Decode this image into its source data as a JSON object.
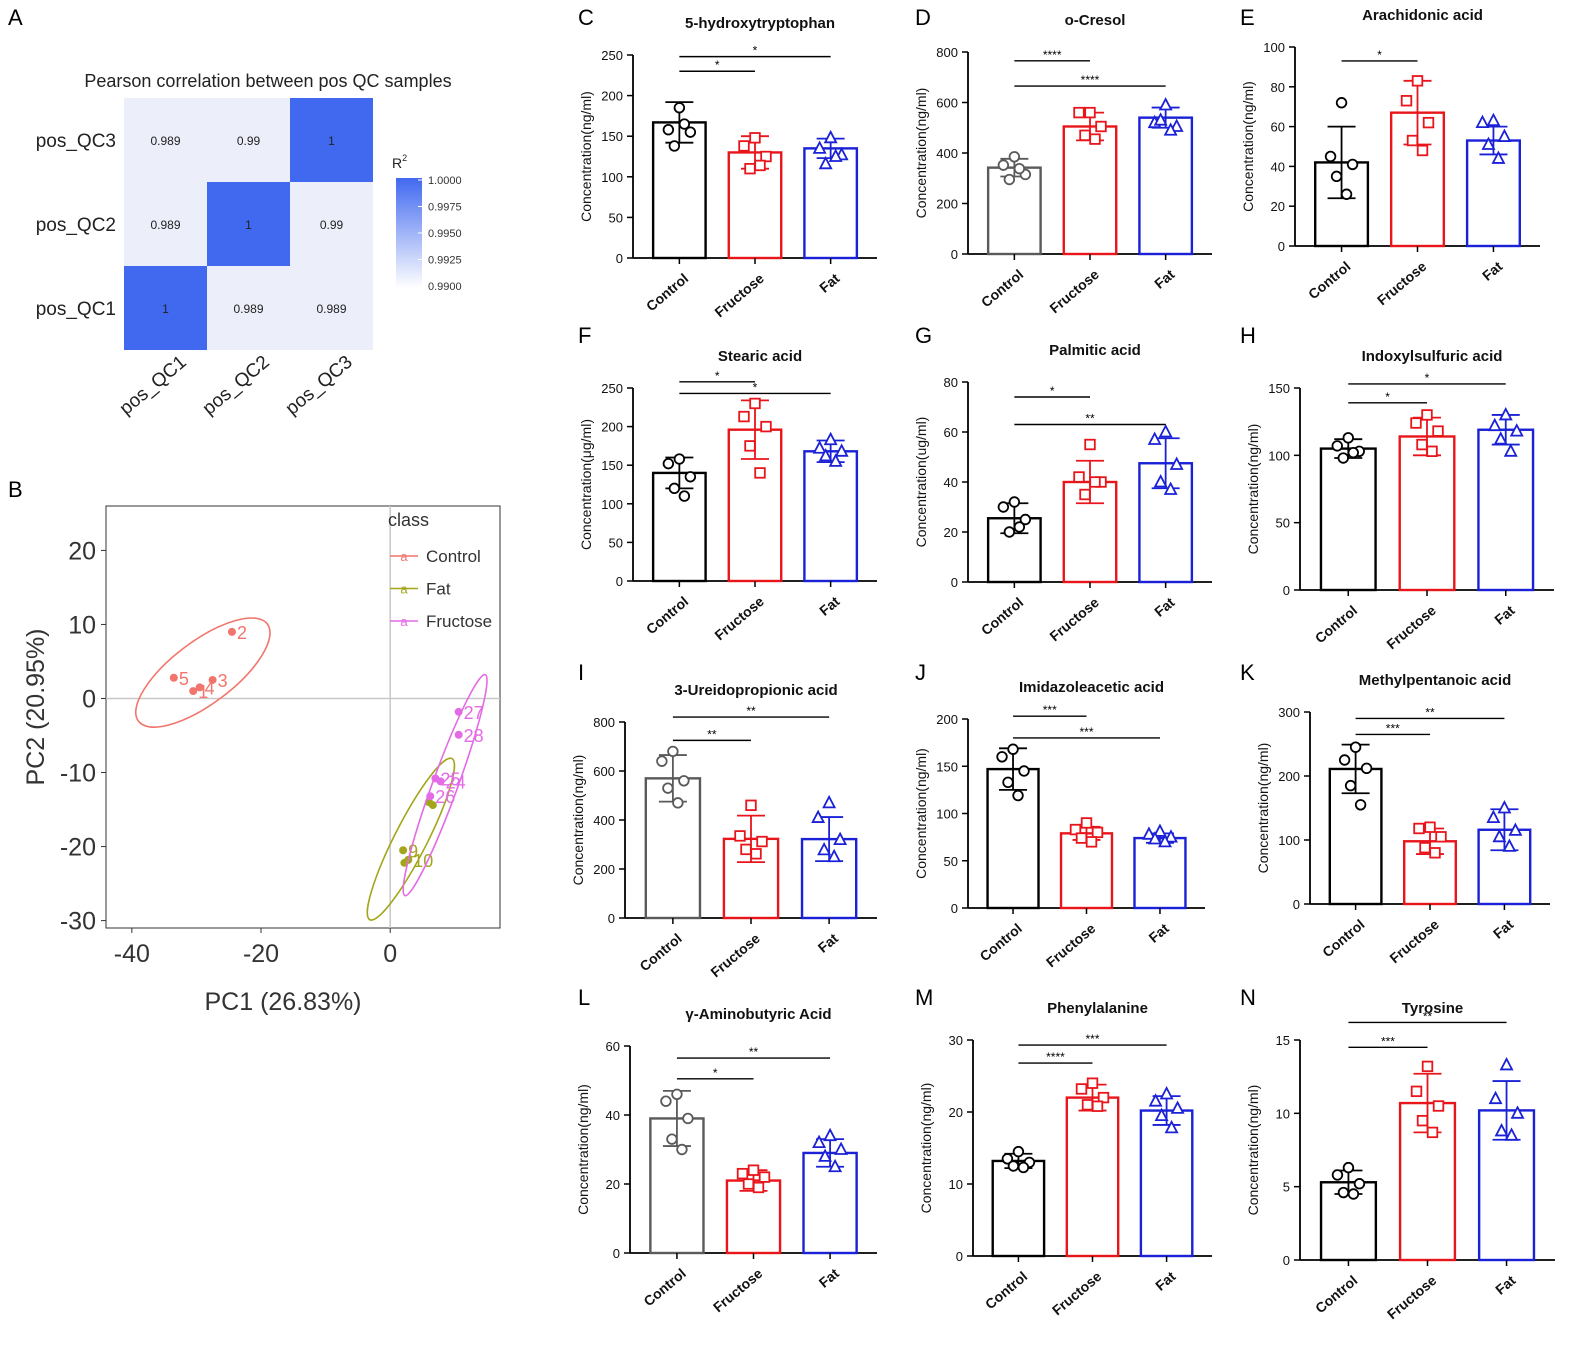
{
  "colors": {
    "control": "#000000",
    "control_alt": "#5a5a5a",
    "fructose": "#e8151b",
    "fat": "#1a21d6",
    "heat_high": "#4169f0",
    "heat_low": "#eceef9",
    "pca_control": "#f1756c",
    "pca_fat": "#a3a61a",
    "pca_fructose": "#e46be6"
  },
  "chart_data": [
    {
      "id": "A",
      "type": "heatmap",
      "panel_label": "A",
      "title": "Pearson correlation between pos QC samples",
      "rows": [
        "pos_QC3",
        "pos_QC2",
        "pos_QC1"
      ],
      "cols": [
        "pos_QC1",
        "pos_QC2",
        "pos_QC3"
      ],
      "values": [
        [
          0.989,
          0.99,
          1
        ],
        [
          0.989,
          1,
          0.99
        ],
        [
          1,
          0.989,
          0.989
        ]
      ],
      "cell_labels": [
        [
          "0.989",
          "0.99",
          "1"
        ],
        [
          "0.989",
          "1",
          "0.99"
        ],
        [
          "1",
          "0.989",
          "0.989"
        ]
      ],
      "legend_title": "R",
      "legend_title_sup": "2",
      "legend_ticks": [
        "1.0000",
        "0.9975",
        "0.9950",
        "0.9925",
        "0.9900"
      ],
      "range": [
        0.99,
        1.0
      ]
    },
    {
      "id": "B",
      "type": "scatter",
      "panel_label": "B",
      "xlabel": "PC1 (26.83%)",
      "ylabel": "PC2 (20.95%)",
      "xlim": [
        -44,
        17
      ],
      "ylim": [
        -31,
        26
      ],
      "xticks": [
        {
          "v": -40,
          "label": "-40"
        },
        {
          "v": -20,
          "label": "-20"
        },
        {
          "v": 0,
          "label": "0"
        }
      ],
      "yticks": [
        {
          "v": 20,
          "label": "20"
        },
        {
          "v": 10,
          "label": "10"
        },
        {
          "v": 0,
          "label": "0"
        },
        {
          "v": -10,
          "label": "-10"
        },
        {
          "v": -20,
          "label": "-20"
        },
        {
          "v": -30,
          "label": "-30"
        }
      ],
      "legend_title": "class",
      "legend_icon_letter": "a",
      "series": [
        {
          "name": "Control",
          "key": "pca_control",
          "points": [
            {
              "x": -24.5,
              "y": 9,
              "label": "2"
            },
            {
              "x": -33.5,
              "y": 2.8,
              "label": "5"
            },
            {
              "x": -27.5,
              "y": 2.5,
              "label": "3"
            },
            {
              "x": -29.5,
              "y": 1.5,
              "label": "4"
            },
            {
              "x": -30.5,
              "y": 1,
              "label": "1"
            }
          ],
          "ellipse": {
            "cx": -29,
            "cy": 3.5,
            "rx": 12.5,
            "ry": 4.2,
            "angle": -37
          }
        },
        {
          "name": "Fat",
          "key": "pca_fat",
          "points": [
            {
              "x": 2,
              "y": -20.5,
              "label": "9"
            },
            {
              "x": 2.8,
              "y": -21.8,
              "label": "10"
            },
            {
              "x": 2.2,
              "y": -22.2,
              "label": ""
            },
            {
              "x": 6,
              "y": -14,
              "label": ""
            },
            {
              "x": 6.6,
              "y": -14.4,
              "label": ""
            }
          ],
          "ellipse": {
            "cx": 3.2,
            "cy": -19,
            "rx": 14,
            "ry": 2.2,
            "angle": -63
          }
        },
        {
          "name": "Fructose",
          "key": "pca_fructose",
          "points": [
            {
              "x": 10.6,
              "y": -1.8,
              "label": "27"
            },
            {
              "x": 10.6,
              "y": -4.9,
              "label": "28"
            },
            {
              "x": 7,
              "y": -10.8,
              "label": "25"
            },
            {
              "x": 7.8,
              "y": -11.2,
              "label": "24"
            },
            {
              "x": 6.2,
              "y": -13.2,
              "label": "26"
            }
          ],
          "ellipse": {
            "cx": 8.5,
            "cy": -11.7,
            "rx": 18.2,
            "ry": 1.7,
            "angle": -70
          }
        }
      ]
    },
    {
      "id": "C",
      "type": "bar",
      "panel_label": "C",
      "title": "5-hydroxytryptophan",
      "ylabel": "Concentration(ng/ml)",
      "ylim": [
        0,
        250
      ],
      "yticks": [
        0,
        50,
        100,
        150,
        200,
        250
      ],
      "categories": [
        "Control",
        "Fructose",
        "Fat"
      ],
      "means": [
        167,
        130,
        135
      ],
      "sd": [
        25,
        20,
        12
      ],
      "points": [
        [
          185,
          158,
          155,
          138,
          165
        ],
        [
          148,
          138,
          125,
          110,
          114
        ],
        [
          148,
          135,
          127,
          116,
          125
        ]
      ],
      "sig": [
        {
          "a": 1,
          "b": 2,
          "y": 230,
          "label": "*"
        },
        {
          "a": 1,
          "b": 3,
          "y": 248,
          "label": "*"
        }
      ]
    },
    {
      "id": "D",
      "type": "bar",
      "panel_label": "D",
      "title": "o-Cresol",
      "ylabel": "Concentration(ng/ml)",
      "ylim": [
        0,
        800
      ],
      "yticks": [
        0,
        200,
        400,
        600,
        800
      ],
      "categories": [
        "Control",
        "Fructose",
        "Fat"
      ],
      "means": [
        342,
        505,
        540
      ],
      "sd": [
        35,
        55,
        40
      ],
      "points": [
        [
          385,
          352,
          315,
          295,
          338
        ],
        [
          560,
          560,
          505,
          470,
          455
        ],
        [
          590,
          520,
          505,
          530,
          490
        ]
      ],
      "sig": [
        {
          "a": 1,
          "b": 2,
          "y": 765,
          "label": "****"
        },
        {
          "a": 1,
          "b": 3,
          "y": 665,
          "label": "****"
        }
      ]
    },
    {
      "id": "E",
      "type": "bar",
      "panel_label": "E",
      "title": "Arachidonic acid",
      "ylabel": "Concentration(ng/ml)",
      "ylim": [
        0,
        100
      ],
      "yticks": [
        0,
        20,
        40,
        60,
        80,
        100
      ],
      "categories": [
        "Control",
        "Fructose",
        "Fat"
      ],
      "means": [
        42,
        67,
        53
      ],
      "sd": [
        18,
        16,
        7
      ],
      "points": [
        [
          72,
          45,
          41,
          35,
          26
        ],
        [
          83,
          73,
          62,
          53,
          48
        ],
        [
          63,
          62,
          55,
          51,
          44
        ]
      ],
      "sig": [
        {
          "a": 1,
          "b": 2,
          "y": 93,
          "label": "*"
        }
      ]
    },
    {
      "id": "F",
      "type": "bar",
      "panel_label": "F",
      "title": "Stearic acid",
      "ylabel": "Concentration(μg/ml)",
      "ylim": [
        0,
        250
      ],
      "yticks": [
        0,
        50,
        100,
        150,
        200,
        250
      ],
      "categories": [
        "Control",
        "Fructose",
        "Fat"
      ],
      "means": [
        140,
        196,
        168
      ],
      "sd": [
        20,
        38,
        14
      ],
      "points": [
        [
          158,
          152,
          135,
          120,
          110
        ],
        [
          230,
          213,
          200,
          175,
          140
        ],
        [
          183,
          172,
          168,
          162,
          155
        ]
      ],
      "sig": [
        {
          "a": 1,
          "b": 2,
          "y": 258,
          "label": "*"
        },
        {
          "a": 1,
          "b": 3,
          "y": 243,
          "label": "*"
        }
      ]
    },
    {
      "id": "G",
      "type": "bar",
      "panel_label": "G",
      "title": "Palmitic acid",
      "ylabel": "Concentration(ug/ml)",
      "ylim": [
        0,
        80
      ],
      "yticks": [
        0,
        20,
        40,
        60,
        80
      ],
      "categories": [
        "Control",
        "Fructose",
        "Fat"
      ],
      "means": [
        25.5,
        40,
        47.5
      ],
      "sd": [
        6,
        8.5,
        10
      ],
      "points": [
        [
          32,
          30,
          25,
          20,
          22
        ],
        [
          55,
          42,
          40,
          35,
          40
        ],
        [
          60,
          57,
          47,
          40,
          37
        ]
      ],
      "sig": [
        {
          "a": 1,
          "b": 2,
          "y": 74,
          "label": "*"
        },
        {
          "a": 1,
          "b": 3,
          "y": 63,
          "label": "**"
        }
      ]
    },
    {
      "id": "H",
      "type": "bar",
      "panel_label": "H",
      "title": "Indoxylsulfuric acid",
      "ylabel": "Concentration(ng/ml)",
      "ylim": [
        0,
        150
      ],
      "yticks": [
        0,
        50,
        100,
        150
      ],
      "categories": [
        "Control",
        "Fructose",
        "Fat"
      ],
      "means": [
        105,
        114,
        119
      ],
      "sd": [
        7,
        14,
        11
      ],
      "points": [
        [
          113,
          107,
          103,
          98,
          102
        ],
        [
          130,
          124,
          118,
          108,
          103
        ],
        [
          130,
          122,
          118,
          112,
          103
        ]
      ],
      "sig": [
        {
          "a": 1,
          "b": 2,
          "y": 139,
          "label": "*"
        },
        {
          "a": 1,
          "b": 3,
          "y": 153,
          "label": "*"
        }
      ]
    },
    {
      "id": "I",
      "type": "bar",
      "panel_label": "I",
      "title": "3-Ureidopropionic acid",
      "ylabel": "Concentration(ng/ml)",
      "ylim": [
        0,
        800
      ],
      "yticks": [
        0,
        200,
        400,
        600,
        800
      ],
      "categories": [
        "Control",
        "Fructose",
        "Fat"
      ],
      "means": [
        570,
        323,
        322
      ],
      "sd": [
        95,
        95,
        90
      ],
      "points": [
        [
          680,
          640,
          560,
          530,
          470
        ],
        [
          460,
          335,
          312,
          280,
          262
        ],
        [
          470,
          410,
          320,
          278,
          250
        ]
      ],
      "sig": [
        {
          "a": 1,
          "b": 2,
          "y": 725,
          "label": "**"
        },
        {
          "a": 1,
          "b": 3,
          "y": 820,
          "label": "**"
        }
      ]
    },
    {
      "id": "J",
      "type": "bar",
      "panel_label": "J",
      "title": "Imidazoleacetic acid",
      "ylabel": "Concentration(ng/ml)",
      "ylim": [
        0,
        200
      ],
      "yticks": [
        0,
        50,
        100,
        150,
        200
      ],
      "categories": [
        "Control",
        "Fructose",
        "Fat"
      ],
      "means": [
        147,
        79,
        74
      ],
      "sd": [
        22,
        7,
        5
      ],
      "points": [
        [
          168,
          160,
          145,
          133,
          119
        ],
        [
          90,
          83,
          80,
          74,
          70
        ],
        [
          81,
          78,
          75,
          73,
          70
        ]
      ],
      "sig": [
        {
          "a": 1,
          "b": 2,
          "y": 203,
          "label": "***"
        },
        {
          "a": 1,
          "b": 3,
          "y": 180,
          "label": "***"
        }
      ]
    },
    {
      "id": "K",
      "type": "bar",
      "panel_label": "K",
      "title": "Methylpentanoic acid",
      "ylabel": "Concentration(ng/ml)",
      "ylim": [
        0,
        300
      ],
      "yticks": [
        0,
        100,
        200,
        300
      ],
      "categories": [
        "Control",
        "Fructose",
        "Fat"
      ],
      "means": [
        211,
        98,
        116
      ],
      "sd": [
        38,
        20,
        32
      ],
      "points": [
        [
          245,
          225,
          212,
          185,
          155
        ],
        [
          120,
          118,
          105,
          88,
          80
        ],
        [
          150,
          135,
          115,
          105,
          90
        ]
      ],
      "sig": [
        {
          "a": 1,
          "b": 2,
          "y": 265,
          "label": "***"
        },
        {
          "a": 1,
          "b": 3,
          "y": 290,
          "label": "**"
        }
      ]
    },
    {
      "id": "L",
      "type": "bar",
      "panel_label": "L",
      "title": "γ-Aminobutyric Acid",
      "ylabel": "Concentration(ng/ml)",
      "ylim": [
        0,
        60
      ],
      "yticks": [
        0,
        20,
        40,
        60
      ],
      "categories": [
        "Control",
        "Fructose",
        "Fat"
      ],
      "means": [
        39,
        21,
        29
      ],
      "sd": [
        8,
        3,
        4
      ],
      "points": [
        [
          46,
          44,
          39,
          33,
          30
        ],
        [
          24,
          23,
          22,
          20,
          19
        ],
        [
          34,
          32,
          30,
          28,
          25
        ]
      ],
      "sig": [
        {
          "a": 1,
          "b": 2,
          "y": 50.5,
          "label": "*"
        },
        {
          "a": 1,
          "b": 3,
          "y": 56.5,
          "label": "**"
        }
      ]
    },
    {
      "id": "M",
      "type": "bar",
      "panel_label": "M",
      "title": "Phenylalanine",
      "ylabel": "Concentration(ng/ml)",
      "ylim": [
        0,
        30
      ],
      "yticks": [
        0,
        10,
        20,
        30
      ],
      "categories": [
        "Control",
        "Fructose",
        "Fat"
      ],
      "means": [
        13.2,
        22,
        20.2
      ],
      "sd": [
        1,
        1.8,
        2
      ],
      "points": [
        [
          14.5,
          13.5,
          13,
          12.5,
          12.3
        ],
        [
          24,
          23.2,
          22,
          21,
          20.8
        ],
        [
          22.5,
          21.5,
          20.5,
          19.5,
          17.8
        ]
      ],
      "sig": [
        {
          "a": 1,
          "b": 2,
          "y": 26.8,
          "label": "****"
        },
        {
          "a": 1,
          "b": 3,
          "y": 29.3,
          "label": "***"
        }
      ]
    },
    {
      "id": "N",
      "type": "bar",
      "panel_label": "N",
      "title": "Tyrosine",
      "ylabel": "Concentration(ng/ml)",
      "ylim": [
        0,
        15
      ],
      "yticks": [
        0,
        5,
        10,
        15
      ],
      "categories": [
        "Control",
        "Fructose",
        "Fat"
      ],
      "means": [
        5.3,
        10.7,
        10.2
      ],
      "sd": [
        0.8,
        2,
        2
      ],
      "points": [
        [
          6.3,
          5.8,
          5.2,
          4.6,
          4.5
        ],
        [
          13.2,
          11.5,
          10.5,
          9.5,
          8.7
        ],
        [
          13.3,
          11,
          10,
          8.8,
          8.5
        ]
      ],
      "sig": [
        {
          "a": 1,
          "b": 2,
          "y": 14.5,
          "label": "***"
        },
        {
          "a": 1,
          "b": 3,
          "y": 16.2,
          "label": "**"
        }
      ]
    }
  ]
}
